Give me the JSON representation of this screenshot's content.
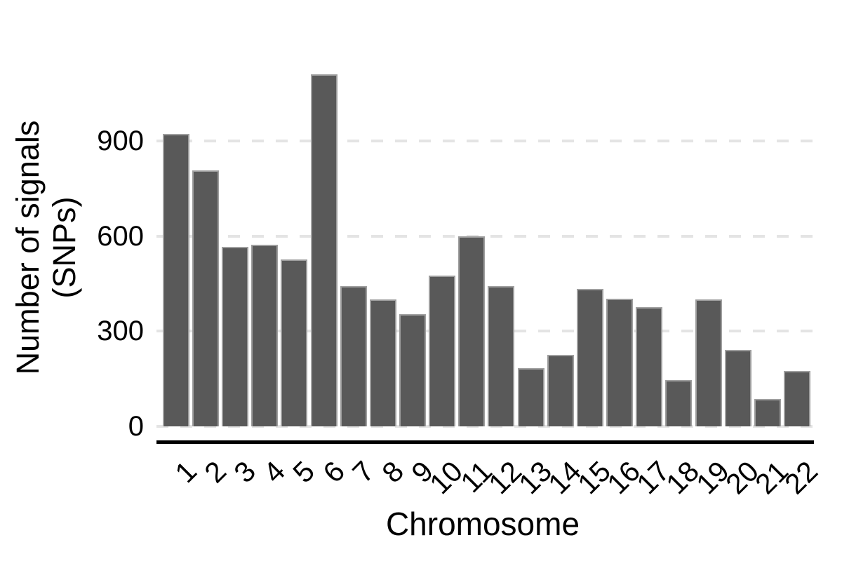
{
  "chart_data": {
    "type": "bar",
    "title": "",
    "xlabel": "Chromosome",
    "ylabel_lines": [
      "Number of signals",
      "(SNPs)"
    ],
    "categories": [
      "1",
      "2",
      "3",
      "4",
      "5",
      "6",
      "7",
      "8",
      "9",
      "10",
      "11",
      "12",
      "13",
      "14",
      "15",
      "16",
      "17",
      "18",
      "19",
      "20",
      "21",
      "22"
    ],
    "values": [
      924,
      807,
      566,
      574,
      528,
      1112,
      443,
      402,
      354,
      477,
      600,
      443,
      184,
      227,
      434,
      404,
      377,
      146,
      402,
      242,
      88,
      176
    ],
    "yticks": [
      0,
      300,
      600,
      900
    ],
    "ylim": [
      0,
      1150
    ],
    "grid": {
      "orientation": "horizontal",
      "style": "dashed",
      "color": "#e4e4e4",
      "ticks_with_gridlines": [
        0,
        300,
        600,
        900
      ]
    },
    "legend": "none",
    "bar_fill_color": "#595959",
    "bar_border_color": "#9e9e9e",
    "axis_line_color": "#000000",
    "text_color": "#000000",
    "background_color": "#ffffff"
  }
}
